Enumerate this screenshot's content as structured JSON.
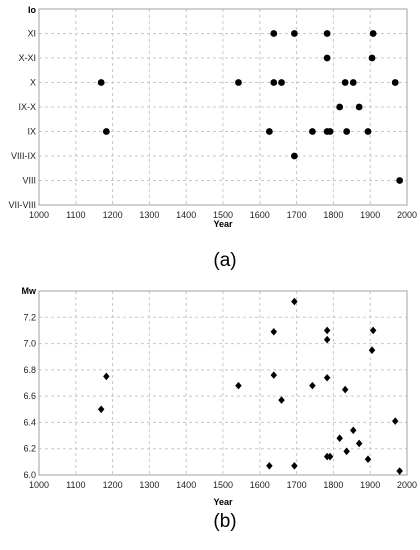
{
  "chart_data": [
    {
      "type": "scatter",
      "panel_label": "(a)",
      "ylabel": "Io",
      "xlabel": "Year",
      "xlim": [
        1000,
        2000
      ],
      "x_ticks": [
        1000,
        1100,
        1200,
        1300,
        1400,
        1500,
        1600,
        1700,
        1800,
        1900,
        2000
      ],
      "y_categories": [
        "VII-VIII",
        "VIII",
        "VIII-IX",
        "IX",
        "IX-X",
        "X",
        "X-XI",
        "XI"
      ],
      "grid": "dashed",
      "marker": "circle",
      "color": "#000000",
      "points": [
        {
          "x": 1638,
          "y": "XI"
        },
        {
          "x": 1694,
          "y": "XI"
        },
        {
          "x": 1783,
          "y": "XI"
        },
        {
          "x": 1908,
          "y": "XI"
        },
        {
          "x": 1783,
          "y": "X-XI"
        },
        {
          "x": 1905,
          "y": "X-XI"
        },
        {
          "x": 1169,
          "y": "X"
        },
        {
          "x": 1542,
          "y": "X"
        },
        {
          "x": 1638,
          "y": "X"
        },
        {
          "x": 1659,
          "y": "X"
        },
        {
          "x": 1832,
          "y": "X"
        },
        {
          "x": 1854,
          "y": "X"
        },
        {
          "x": 1968,
          "y": "X"
        },
        {
          "x": 1817,
          "y": "IX-X"
        },
        {
          "x": 1870,
          "y": "IX-X"
        },
        {
          "x": 1183,
          "y": "IX"
        },
        {
          "x": 1626,
          "y": "IX"
        },
        {
          "x": 1743,
          "y": "IX"
        },
        {
          "x": 1783,
          "y": "IX"
        },
        {
          "x": 1791,
          "y": "IX"
        },
        {
          "x": 1836,
          "y": "IX"
        },
        {
          "x": 1894,
          "y": "IX"
        },
        {
          "x": 1694,
          "y": "VIII-IX"
        },
        {
          "x": 1980,
          "y": "VIII"
        }
      ]
    },
    {
      "type": "scatter",
      "panel_label": "(b)",
      "ylabel": "Mw",
      "xlabel": "Year",
      "xlim": [
        1000,
        2000
      ],
      "ylim": [
        6.0,
        7.4
      ],
      "x_ticks": [
        1000,
        1100,
        1200,
        1300,
        1400,
        1500,
        1600,
        1700,
        1800,
        1900,
        2000
      ],
      "y_ticks": [
        6.0,
        6.2,
        6.4,
        6.6,
        6.8,
        7.0,
        7.2
      ],
      "y_tick_labels": [
        "6.0",
        "6.2",
        "6.4",
        "6.6",
        "6.8",
        "7.0",
        "7.2"
      ],
      "grid": "dashed",
      "marker": "diamond",
      "color": "#000000",
      "points": [
        {
          "x": 1169,
          "y": 6.5
        },
        {
          "x": 1183,
          "y": 6.75
        },
        {
          "x": 1542,
          "y": 6.68
        },
        {
          "x": 1626,
          "y": 6.07
        },
        {
          "x": 1638,
          "y": 7.09
        },
        {
          "x": 1638,
          "y": 6.76
        },
        {
          "x": 1659,
          "y": 6.57
        },
        {
          "x": 1694,
          "y": 7.32
        },
        {
          "x": 1694,
          "y": 6.07
        },
        {
          "x": 1743,
          "y": 6.68
        },
        {
          "x": 1783,
          "y": 7.1
        },
        {
          "x": 1783,
          "y": 7.03
        },
        {
          "x": 1783,
          "y": 6.74
        },
        {
          "x": 1783,
          "y": 6.14
        },
        {
          "x": 1791,
          "y": 6.14
        },
        {
          "x": 1817,
          "y": 6.28
        },
        {
          "x": 1832,
          "y": 6.65
        },
        {
          "x": 1836,
          "y": 6.18
        },
        {
          "x": 1854,
          "y": 6.34
        },
        {
          "x": 1870,
          "y": 6.24
        },
        {
          "x": 1894,
          "y": 6.12
        },
        {
          "x": 1905,
          "y": 6.95
        },
        {
          "x": 1908,
          "y": 7.1
        },
        {
          "x": 1968,
          "y": 6.41
        },
        {
          "x": 1980,
          "y": 6.03
        }
      ]
    }
  ]
}
